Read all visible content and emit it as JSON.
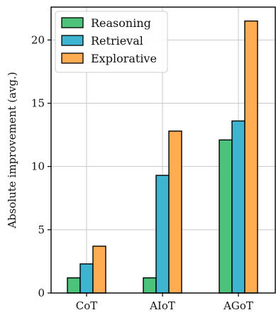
{
  "chart_data": {
    "type": "bar",
    "categories": [
      "CoT",
      "AIoT",
      "AGoT"
    ],
    "series": [
      {
        "name": "Reasoning",
        "color": "#4cc27a",
        "values": [
          1.2,
          1.2,
          12.1
        ]
      },
      {
        "name": "Retrieval",
        "color": "#3db5d0",
        "values": [
          2.3,
          9.3,
          13.6
        ]
      },
      {
        "name": "Explorative",
        "color": "#ffac52",
        "values": [
          3.7,
          12.8,
          21.5
        ]
      }
    ],
    "ylabel": "Absolute improvement (avg.)",
    "xlabel": "",
    "ylim": [
      0,
      22.6
    ],
    "yticks": [
      0,
      5,
      10,
      15,
      20
    ],
    "grid": true,
    "legend_position": "top-left"
  }
}
